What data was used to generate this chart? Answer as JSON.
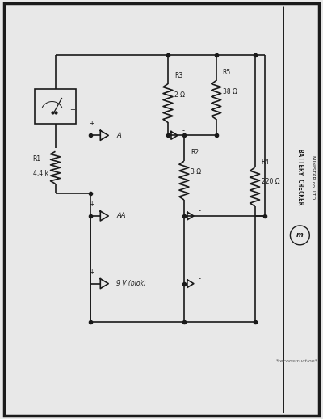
{
  "bg_color": "#e8e8e8",
  "paper_color": "#f5f5f5",
  "border_color": "#1a1a1a",
  "line_color": "#1a1a1a",
  "title_right": "BATTERY CHECKER",
  "brand_right": "MINISTAR co. LTD",
  "footnote": "*reconstruction*",
  "components": {
    "R1": {
      "label": "R1",
      "value": "4,4 k"
    },
    "R2": {
      "label": "R2",
      "value": "3 Ω"
    },
    "R3": {
      "label": "R3",
      "value": "2 Ω"
    },
    "R4": {
      "label": "R4",
      "value": "220 Ω"
    },
    "R5": {
      "label": "R5",
      "value": "38 Ω"
    }
  },
  "battery_labels": [
    "9 V (blok)",
    "AA",
    "A"
  ]
}
